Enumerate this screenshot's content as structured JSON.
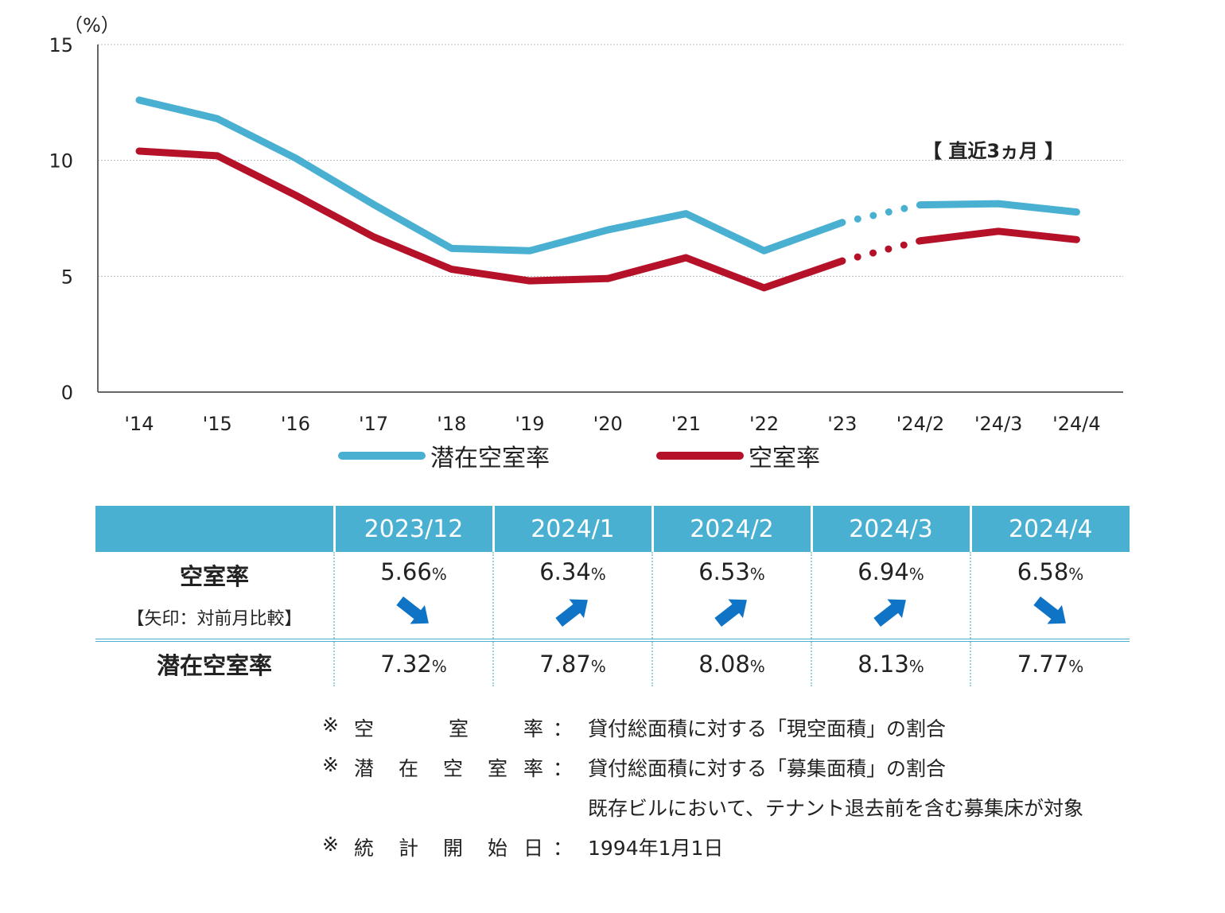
{
  "chart_data": {
    "type": "line",
    "unit_label": "（%）",
    "categories": [
      "'14",
      "'15",
      "'16",
      "'17",
      "'18",
      "'19",
      "'20",
      "'21",
      "'22",
      "'23",
      "'24/2",
      "'24/3",
      "'24/4"
    ],
    "ylim": [
      0,
      15
    ],
    "yticks": [
      "0",
      "5",
      "10",
      "15"
    ],
    "grid": true,
    "series": [
      {
        "name": "潜在空室率",
        "color": "#4ab0d2",
        "values": [
          12.6,
          11.8,
          10.1,
          8.1,
          6.2,
          6.1,
          7.0,
          7.7,
          6.1,
          7.32,
          8.08,
          8.13,
          7.77
        ]
      },
      {
        "name": "空室率",
        "color": "#b5122a",
        "values": [
          10.4,
          10.2,
          8.5,
          6.7,
          5.3,
          4.8,
          4.9,
          5.8,
          4.5,
          5.66,
          6.53,
          6.94,
          6.58
        ]
      }
    ],
    "dotted_between": [
      9,
      10
    ],
    "annotation": "【 直近3ヵ月 】",
    "legend_placement": "bottom"
  },
  "table": {
    "columns": [
      "2023/12",
      "2024/1",
      "2024/2",
      "2024/3",
      "2024/4"
    ],
    "row1_label": "空室率",
    "row1_sub": "【矢印：対前月比較】",
    "row2_label": "潜在空室率",
    "vacancy": [
      "5.66",
      "6.34",
      "6.53",
      "6.94",
      "6.58"
    ],
    "potential": [
      "7.32",
      "7.87",
      "8.08",
      "8.13",
      "7.77"
    ],
    "pct_suffix": "%",
    "arrows": [
      "down",
      "up",
      "up",
      "up",
      "down"
    ],
    "arrow_color": "#1074c6"
  },
  "notes": [
    {
      "key": [
        "※",
        "空",
        "室",
        "率"
      ],
      "value": "貸付総面積に対する「現空面積」の割合"
    },
    {
      "key": [
        "※",
        "潜",
        "在",
        "空",
        "室",
        "率"
      ],
      "value": "貸付総面積に対する「募集面積」の割合"
    },
    {
      "key": [],
      "value": "既存ビルにおいて、テナント退去前を含む募集床が対象"
    },
    {
      "key": [
        "※",
        "統",
        "計",
        "開",
        "始",
        "日"
      ],
      "value": "1994年1月1日"
    }
  ],
  "note_colon": "："
}
